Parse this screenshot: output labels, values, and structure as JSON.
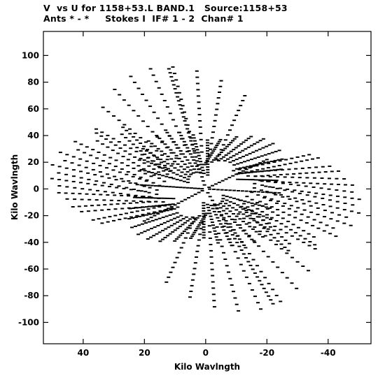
{
  "header": {
    "line1": "V  vs U for 1158+53.L BAND.1   Source:1158+53",
    "line2": "Ants * - *     Stokes I  IF# 1 - 2  Chan# 1"
  },
  "chart_data": {
    "type": "scatter",
    "xlabel": "Kilo Wavlngth",
    "ylabel": "Kilo Wavlngth",
    "xlim": [
      53,
      -54
    ],
    "ylim": [
      -116,
      118
    ],
    "xticks": [
      40,
      20,
      0,
      -20,
      -40
    ],
    "yticks": [
      100,
      80,
      60,
      40,
      20,
      0,
      -20,
      -40,
      -60,
      -80,
      -100
    ],
    "grid": false,
    "marker_color": "#000000",
    "uv_tracks": [
      {
        "u0": 16,
        "v0": -4,
        "u1": 48,
        "v1": 12
      },
      {
        "u0": 6,
        "v0": 28,
        "u1": 18,
        "v1": 90
      },
      {
        "u0": 8,
        "v0": -20,
        "u1": 22,
        "v1": -34
      },
      {
        "u0": 20,
        "v0": 2,
        "u1": 50,
        "v1": 18
      },
      {
        "u0": 4,
        "v0": 12,
        "u1": 16,
        "v1": 40
      }
    ],
    "arms": [
      {
        "x0": 0,
        "y0": 0,
        "x1": 12,
        "y1": 90,
        "steps": 30
      },
      {
        "x0": 0,
        "y0": 0,
        "x1": -22,
        "y1": -86,
        "steps": 30
      },
      {
        "x0": 0,
        "y0": 0,
        "x1": 21,
        "y1": 3,
        "steps": 18
      },
      {
        "x0": 0,
        "y0": 0,
        "x1": -24,
        "y1": -3,
        "steps": 18
      },
      {
        "x0": 0,
        "y0": 0,
        "x1": -20,
        "y1": 22,
        "steps": 18
      },
      {
        "x0": 0,
        "y0": 0,
        "x1": 20,
        "y1": -24,
        "steps": 18
      }
    ]
  }
}
